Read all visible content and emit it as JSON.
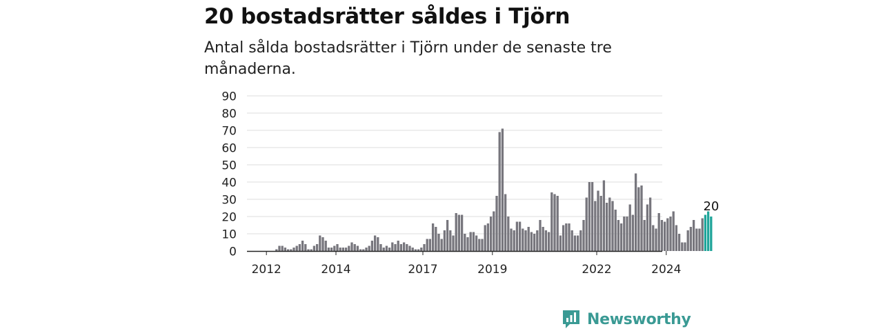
{
  "title": "20 bostadsrätter såldes i Tjörn",
  "subtitle": "Antal sålda bostadsrätter i Tjörn under de senaste tre månaderna.",
  "brand": {
    "name": "Newsworthy",
    "icon": "bar-chart-speech-bubble-icon",
    "color": "#3a9a94"
  },
  "colors": {
    "bar": "#77767d",
    "highlight": "#1fa59a",
    "grid": "#dddddd",
    "axis": "#222222"
  },
  "chart_data": {
    "type": "bar",
    "title": "20 bostadsrätter såldes i Tjörn",
    "subtitle": "Antal sålda bostadsrätter i Tjörn under de senaste tre månaderna.",
    "xlabel": "",
    "ylabel": "",
    "ylim": [
      0,
      90
    ],
    "yticks": [
      0,
      10,
      20,
      30,
      40,
      50,
      60,
      70,
      80,
      90
    ],
    "grid": true,
    "legend": "none",
    "start_month": "2012-01",
    "xticks": [
      {
        "label": "2012",
        "month": "2012-07"
      },
      {
        "label": "2014",
        "month": "2014-07"
      },
      {
        "label": "2017",
        "month": "2017-01"
      },
      {
        "label": "2019",
        "month": "2019-01"
      },
      {
        "label": "2022",
        "month": "2022-01"
      },
      {
        "label": "2024",
        "month": "2024-01"
      }
    ],
    "values": [
      0,
      0,
      0,
      0,
      0,
      0,
      0,
      0,
      0,
      1,
      3,
      3,
      2,
      1,
      1,
      2,
      3,
      4,
      6,
      4,
      1,
      1,
      3,
      4,
      9,
      8,
      6,
      2,
      2,
      3,
      4,
      2,
      2,
      2,
      3,
      5,
      4,
      3,
      1,
      1,
      2,
      3,
      6,
      9,
      8,
      4,
      2,
      3,
      2,
      5,
      4,
      6,
      4,
      5,
      4,
      3,
      2,
      1,
      1,
      2,
      4,
      7,
      7,
      16,
      14,
      10,
      7,
      12,
      18,
      12,
      9,
      22,
      21,
      21,
      10,
      8,
      11,
      11,
      9,
      7,
      7,
      15,
      16,
      20,
      23,
      32,
      69,
      71,
      33,
      20,
      13,
      12,
      17,
      17,
      13,
      12,
      14,
      11,
      10,
      12,
      18,
      14,
      12,
      11,
      34,
      33,
      32,
      9,
      15,
      16,
      16,
      12,
      9,
      9,
      12,
      18,
      31,
      40,
      40,
      29,
      35,
      32,
      41,
      28,
      31,
      29,
      24,
      18,
      16,
      20,
      20,
      27,
      21,
      45,
      37,
      38,
      18,
      27,
      31,
      15,
      13,
      22,
      18,
      17,
      19,
      20,
      23,
      15,
      10,
      5,
      5,
      12,
      14,
      18,
      13,
      13,
      19,
      21,
      23,
      20
    ],
    "highlight_last": 3,
    "annotation": {
      "label": "20",
      "value": 20
    }
  }
}
